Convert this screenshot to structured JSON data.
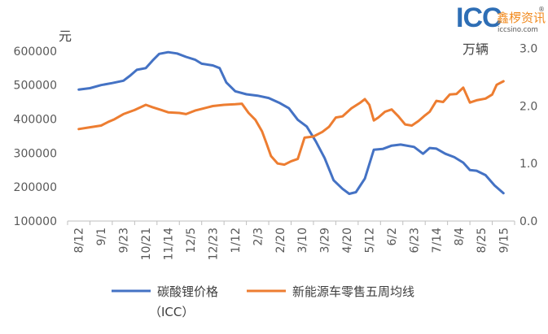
{
  "logo": {
    "brand": "ICC",
    "cn_name": "鑫椤资讯",
    "registered_mark": "®",
    "url": "iccsino.com"
  },
  "colors": {
    "series_blue": "#4472C4",
    "series_orange": "#ED7D31",
    "logo_blue": "#2E6EB5",
    "logo_orange": "#F18A1E",
    "axis_text": "#595959",
    "axis_line": "#bfbfbf"
  },
  "chart_data": {
    "type": "line",
    "left_unit": "元",
    "right_unit": "万辆",
    "x_ticks": [
      "8/12",
      "9/1",
      "9/23",
      "10/21",
      "11/14",
      "12/5",
      "12/23",
      "1/12",
      "2/3",
      "2/20",
      "3/10",
      "3/29",
      "4/20",
      "5/12",
      "6/2",
      "6/23",
      "7/14",
      "8/4",
      "8/25",
      "9/15"
    ],
    "y_left_ticks": [
      "100000",
      "200000",
      "300000",
      "400000",
      "500000",
      "600000"
    ],
    "y_left_range": [
      100000,
      650000
    ],
    "y_right_ticks": [
      "0.0",
      "1.0",
      "2.0",
      "3.0"
    ],
    "y_right_range": [
      0,
      3.25
    ],
    "grid": false,
    "legend_position": "bottom",
    "series": [
      {
        "name": "碳酸锂价格",
        "name_line2": "（ICC）",
        "axis": "left",
        "color": "#4472C4",
        "values": [
          [
            0,
            487000
          ],
          [
            0.5,
            491000
          ],
          [
            1,
            500000
          ],
          [
            1.5,
            506000
          ],
          [
            2,
            513000
          ],
          [
            2.3,
            528000
          ],
          [
            2.6,
            545000
          ],
          [
            3,
            550000
          ],
          [
            3.3,
            572000
          ],
          [
            3.6,
            592000
          ],
          [
            4,
            597000
          ],
          [
            4.4,
            593000
          ],
          [
            4.8,
            583000
          ],
          [
            5.2,
            575000
          ],
          [
            5.5,
            563000
          ],
          [
            6,
            558000
          ],
          [
            6.3,
            550000
          ],
          [
            6.6,
            508000
          ],
          [
            7,
            482000
          ],
          [
            7.5,
            473000
          ],
          [
            8,
            469000
          ],
          [
            8.5,
            462000
          ],
          [
            9,
            447000
          ],
          [
            9.4,
            432000
          ],
          [
            9.8,
            398000
          ],
          [
            10.2,
            378000
          ],
          [
            10.6,
            335000
          ],
          [
            11,
            285000
          ],
          [
            11.4,
            220000
          ],
          [
            11.8,
            195000
          ],
          [
            12.1,
            180000
          ],
          [
            12.4,
            185000
          ],
          [
            12.8,
            225000
          ],
          [
            13.2,
            310000
          ],
          [
            13.6,
            312000
          ],
          [
            14,
            322000
          ],
          [
            14.4,
            325000
          ],
          [
            15,
            318000
          ],
          [
            15.4,
            298000
          ],
          [
            15.7,
            315000
          ],
          [
            16,
            313000
          ],
          [
            16.4,
            298000
          ],
          [
            16.8,
            288000
          ],
          [
            17.2,
            272000
          ],
          [
            17.5,
            250000
          ],
          [
            17.8,
            248000
          ],
          [
            18.2,
            235000
          ],
          [
            18.6,
            205000
          ],
          [
            19,
            182000
          ]
        ]
      },
      {
        "name": "新能源车零售五周均线",
        "axis": "right",
        "color": "#ED7D31",
        "values": [
          [
            0,
            1.6
          ],
          [
            0.5,
            1.63
          ],
          [
            1,
            1.66
          ],
          [
            1.3,
            1.72
          ],
          [
            1.6,
            1.77
          ],
          [
            2,
            1.86
          ],
          [
            2.5,
            1.93
          ],
          [
            3,
            2.02
          ],
          [
            3.3,
            1.98
          ],
          [
            3.7,
            1.93
          ],
          [
            4,
            1.89
          ],
          [
            4.5,
            1.88
          ],
          [
            4.8,
            1.86
          ],
          [
            5.2,
            1.92
          ],
          [
            5.6,
            1.96
          ],
          [
            6,
            2.0
          ],
          [
            6.5,
            2.02
          ],
          [
            7,
            2.03
          ],
          [
            7.3,
            2.04
          ],
          [
            7.6,
            1.88
          ],
          [
            7.9,
            1.76
          ],
          [
            8.2,
            1.56
          ],
          [
            8.4,
            1.35
          ],
          [
            8.6,
            1.13
          ],
          [
            8.9,
            1.0
          ],
          [
            9.2,
            0.98
          ],
          [
            9.5,
            1.04
          ],
          [
            9.8,
            1.08
          ],
          [
            10.1,
            1.45
          ],
          [
            10.5,
            1.47
          ],
          [
            10.9,
            1.55
          ],
          [
            11.2,
            1.64
          ],
          [
            11.5,
            1.8
          ],
          [
            11.8,
            1.82
          ],
          [
            12.2,
            1.96
          ],
          [
            12.6,
            2.06
          ],
          [
            12.8,
            2.12
          ],
          [
            13,
            2.02
          ],
          [
            13.2,
            1.75
          ],
          [
            13.4,
            1.8
          ],
          [
            13.7,
            1.9
          ],
          [
            14,
            1.94
          ],
          [
            14.3,
            1.82
          ],
          [
            14.6,
            1.68
          ],
          [
            14.9,
            1.66
          ],
          [
            15.2,
            1.74
          ],
          [
            15.5,
            1.84
          ],
          [
            15.7,
            1.9
          ],
          [
            16,
            2.09
          ],
          [
            16.3,
            2.07
          ],
          [
            16.6,
            2.2
          ],
          [
            16.9,
            2.21
          ],
          [
            17.2,
            2.32
          ],
          [
            17.5,
            2.06
          ],
          [
            17.8,
            2.1
          ],
          [
            18.2,
            2.13
          ],
          [
            18.5,
            2.2
          ],
          [
            18.7,
            2.37
          ],
          [
            19,
            2.43
          ]
        ]
      }
    ]
  }
}
